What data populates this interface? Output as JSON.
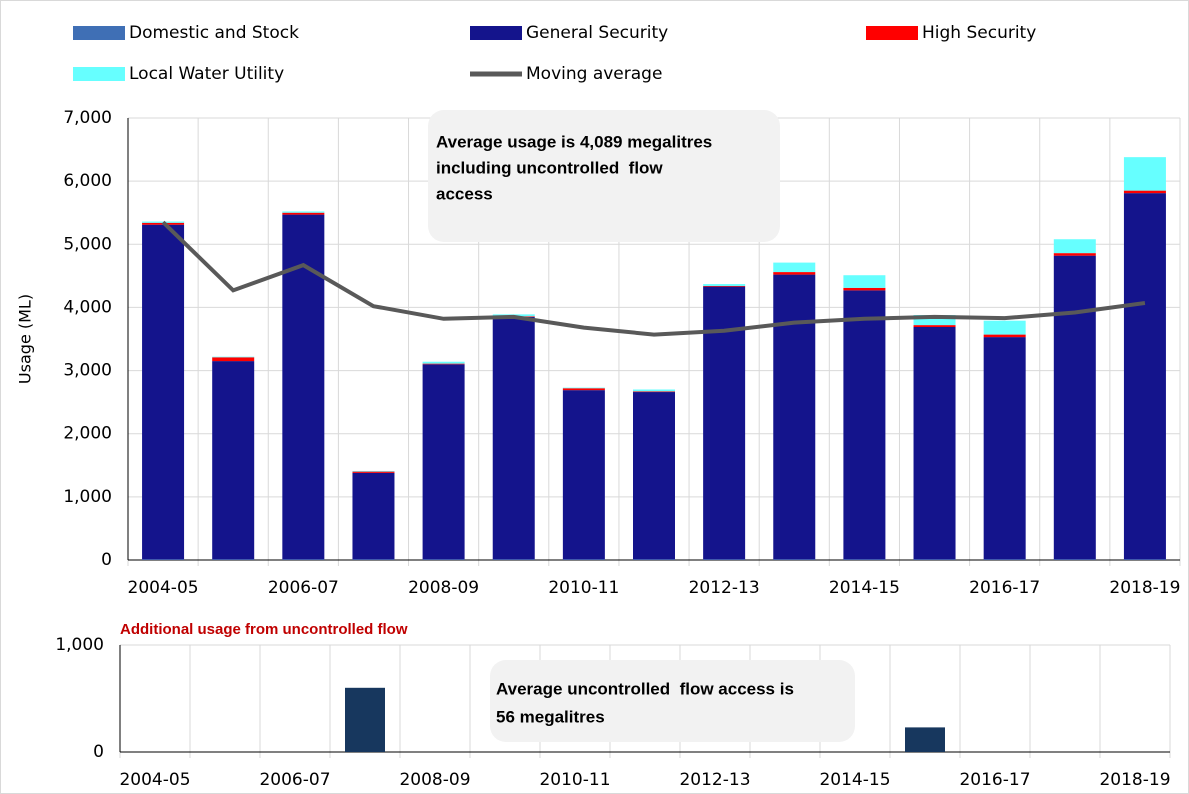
{
  "chart_data": [
    {
      "type": "bar",
      "stacked": true,
      "ylabel": "Usage (ML)",
      "categories": [
        "2004-05",
        null,
        "2006-07",
        null,
        "2008-09",
        null,
        "2010-11",
        null,
        "2012-13",
        null,
        "2014-15",
        null,
        "2016-17",
        null,
        "2018-19"
      ],
      "series": [
        {
          "name": "Domestic and Stock",
          "color": "#3f6fb5",
          "values": [
            10,
            10,
            10,
            10,
            10,
            10,
            10,
            10,
            10,
            10,
            10,
            10,
            10,
            10,
            10
          ]
        },
        {
          "name": "General Security",
          "color": "#14148c",
          "values": [
            5300,
            3140,
            5460,
            1370,
            3090,
            3840,
            2680,
            2650,
            4320,
            4510,
            4260,
            3680,
            3520,
            4810,
            5800
          ]
        },
        {
          "name": "High Security",
          "color": "#ff0000",
          "values": [
            30,
            60,
            30,
            20,
            10,
            10,
            30,
            10,
            10,
            40,
            40,
            30,
            40,
            40,
            40
          ]
        },
        {
          "name": "Local Water Utility",
          "color": "#66ffff",
          "values": [
            20,
            10,
            20,
            10,
            30,
            30,
            10,
            30,
            30,
            150,
            200,
            160,
            220,
            220,
            530
          ]
        },
        {
          "name": "Moving average",
          "type": "line",
          "color": "#595959",
          "values": [
            5350,
            4270,
            4670,
            4020,
            3820,
            3850,
            3680,
            3570,
            3630,
            3760,
            3820,
            3850,
            3830,
            3920,
            4070
          ]
        }
      ],
      "ylim": [
        0,
        7000
      ],
      "yticks": [
        0,
        {
          "value": 1000,
          "label": "1,000"
        },
        {
          "value": 2000,
          "label": "2,000"
        },
        {
          "value": 3000,
          "label": "3,000"
        },
        {
          "value": 4000,
          "label": "4,000"
        },
        {
          "value": 5000,
          "label": "5,000"
        },
        {
          "value": 6000,
          "label": "6,000"
        },
        {
          "value": 7000,
          "label": "7,000"
        }
      ],
      "grid": true,
      "annotation": [
        "Average usage is 4,089 megalitres",
        "including uncontrolled  flow",
        "access"
      ]
    },
    {
      "type": "bar",
      "title": "Additional usage from uncontrolled flow",
      "categories": [
        "2004-05",
        null,
        "2006-07",
        null,
        "2008-09",
        null,
        "2010-11",
        null,
        "2012-13",
        null,
        "2014-15",
        null,
        "2016-17",
        null,
        "2018-19"
      ],
      "values": [
        0,
        0,
        0,
        600,
        0,
        0,
        0,
        0,
        0,
        0,
        0,
        230,
        0,
        0,
        0
      ],
      "color": "#17375e",
      "ylim": [
        0,
        1000
      ],
      "yticks": [
        0,
        {
          "value": 1000,
          "label": "1,000"
        }
      ],
      "grid": true,
      "annotation": [
        "Average uncontrolled  flow access is",
        "56 megalitres"
      ]
    }
  ]
}
